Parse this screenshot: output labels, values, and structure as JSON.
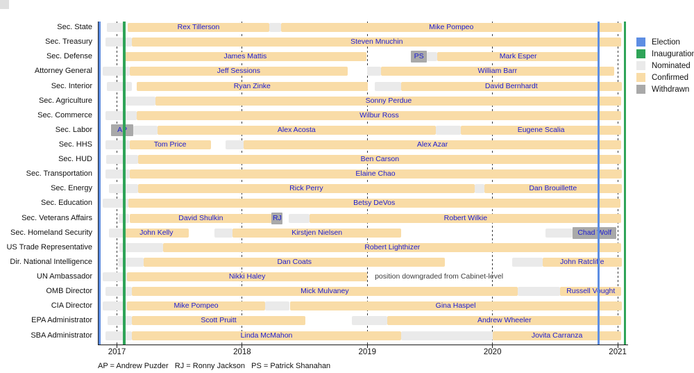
{
  "footnote": "AP = Andrew Puzder   RJ = Ronny Jackson   PS = Patrick Shanahan",
  "chart_data": {
    "type": "gantt-timeline",
    "x_axis": {
      "ticks": [
        2017,
        2018,
        2019,
        2020,
        2021
      ],
      "range": [
        2016.85,
        2021.1
      ],
      "grid": "dashed"
    },
    "legend_position": "right",
    "legend": [
      {
        "key": "election",
        "label": "Election"
      },
      {
        "key": "inauguration",
        "label": "Inauguration"
      },
      {
        "key": "nominated",
        "label": "Nominated"
      },
      {
        "key": "confirmed",
        "label": "Confirmed"
      },
      {
        "key": "withdrawn",
        "label": "Withdrawn"
      }
    ],
    "colors": {
      "election": "#5E8EE3",
      "inauguration": "#2FA458",
      "nominated": "#EAEAEA",
      "confirmed": "#F9DCA7",
      "withdrawn": "#A9A9A9",
      "name_text": "#1B1BD0"
    },
    "events": [
      {
        "type": "election",
        "year": 2016.862
      },
      {
        "type": "inauguration",
        "year": 2017.058
      },
      {
        "type": "election",
        "year": 2020.845
      },
      {
        "type": "inauguration",
        "year": 2021.057
      }
    ],
    "rows": [
      {
        "label": "Sec. State",
        "segments": [
          {
            "type": "nominated",
            "start": 2016.92,
            "end": 2017.06
          },
          {
            "type": "confirmed",
            "start": 2017.086,
            "end": 2018.217,
            "name": "Rex Tillerson"
          },
          {
            "type": "nominated",
            "start": 2018.217,
            "end": 2018.311
          },
          {
            "type": "confirmed",
            "start": 2018.311,
            "end": 2021.03,
            "name": "Mike Pompeo"
          }
        ]
      },
      {
        "label": "Sec. Treasury",
        "segments": [
          {
            "type": "nominated",
            "start": 2016.91,
            "end": 2017.12
          },
          {
            "type": "confirmed",
            "start": 2017.12,
            "end": 2021.03,
            "name": "Steven Mnuchin"
          }
        ]
      },
      {
        "label": "Sec. Defense",
        "segments": [
          {
            "type": "confirmed",
            "start": 2017.055,
            "end": 2018.995,
            "name": "James Mattis"
          },
          {
            "type": "withdrawn",
            "start": 2019.35,
            "end": 2019.475,
            "name": "PS"
          },
          {
            "type": "nominated",
            "start": 2019.475,
            "end": 2019.56
          },
          {
            "type": "confirmed",
            "start": 2019.56,
            "end": 2020.85,
            "name": "Mark Esper"
          }
        ]
      },
      {
        "label": "Attorney General",
        "segments": [
          {
            "type": "nominated",
            "start": 2016.885,
            "end": 2017.1
          },
          {
            "type": "confirmed",
            "start": 2017.1,
            "end": 2018.845,
            "name": "Jeff Sessions"
          },
          {
            "type": "nominated",
            "start": 2019.0,
            "end": 2019.11
          },
          {
            "type": "confirmed",
            "start": 2019.11,
            "end": 2020.97,
            "name": "William Barr"
          }
        ]
      },
      {
        "label": "Sec. Interior",
        "segments": [
          {
            "type": "nominated",
            "start": 2016.92,
            "end": 2017.12
          },
          {
            "type": "confirmed",
            "start": 2017.155,
            "end": 2019.005,
            "name": "Ryan Zinke"
          },
          {
            "type": "nominated",
            "start": 2019.06,
            "end": 2019.27
          },
          {
            "type": "confirmed",
            "start": 2019.27,
            "end": 2021.03,
            "name": "David Bernhardt"
          }
        ]
      },
      {
        "label": "Sec. Agriculture",
        "segments": [
          {
            "type": "nominated",
            "start": 2017.06,
            "end": 2017.31
          },
          {
            "type": "confirmed",
            "start": 2017.31,
            "end": 2021.03,
            "name": "Sonny Perdue"
          }
        ]
      },
      {
        "label": "Sec. Commerce",
        "segments": [
          {
            "type": "nominated",
            "start": 2016.91,
            "end": 2017.16
          },
          {
            "type": "confirmed",
            "start": 2017.16,
            "end": 2021.03,
            "name": "Wilbur Ross"
          }
        ]
      },
      {
        "label": "Sec. Labor",
        "segments": [
          {
            "type": "withdrawn",
            "start": 2016.955,
            "end": 2017.13,
            "name": "AP"
          },
          {
            "type": "nominated",
            "start": 2017.13,
            "end": 2017.325
          },
          {
            "type": "confirmed",
            "start": 2017.325,
            "end": 2019.545,
            "name": "Alex Acosta"
          },
          {
            "type": "nominated",
            "start": 2019.545,
            "end": 2019.745
          },
          {
            "type": "confirmed",
            "start": 2019.745,
            "end": 2021.03,
            "name": "Eugene Scalia"
          }
        ]
      },
      {
        "label": "Sec. HHS",
        "segments": [
          {
            "type": "nominated",
            "start": 2016.91,
            "end": 2017.1
          },
          {
            "type": "confirmed",
            "start": 2017.1,
            "end": 2017.75,
            "name": "Tom Price"
          },
          {
            "type": "nominated",
            "start": 2017.865,
            "end": 2018.01
          },
          {
            "type": "confirmed",
            "start": 2018.01,
            "end": 2021.03,
            "name": "Alex Azar"
          }
        ]
      },
      {
        "label": "Sec. HUD",
        "segments": [
          {
            "type": "nominated",
            "start": 2016.915,
            "end": 2017.17
          },
          {
            "type": "confirmed",
            "start": 2017.17,
            "end": 2021.03,
            "name": "Ben Carson"
          }
        ]
      },
      {
        "label": "Sec. Transportation",
        "segments": [
          {
            "type": "nominated",
            "start": 2016.91,
            "end": 2017.1
          },
          {
            "type": "confirmed",
            "start": 2017.1,
            "end": 2021.03,
            "name": "Elaine Chao"
          }
        ]
      },
      {
        "label": "Sec. Energy",
        "segments": [
          {
            "type": "nominated",
            "start": 2016.935,
            "end": 2017.17
          },
          {
            "type": "confirmed",
            "start": 2017.17,
            "end": 2019.855,
            "name": "Rick Perry"
          },
          {
            "type": "nominated",
            "start": 2019.855,
            "end": 2019.935
          },
          {
            "type": "confirmed",
            "start": 2019.935,
            "end": 2021.03,
            "name": "Dan Brouillette"
          }
        ]
      },
      {
        "label": "Sec. Education",
        "segments": [
          {
            "type": "nominated",
            "start": 2016.885,
            "end": 2017.09
          },
          {
            "type": "confirmed",
            "start": 2017.09,
            "end": 2021.02,
            "name": "Betsy DeVos"
          }
        ]
      },
      {
        "label": "Sec. Veterans Affairs",
        "segments": [
          {
            "type": "nominated",
            "start": 2017.015,
            "end": 2017.1
          },
          {
            "type": "confirmed",
            "start": 2017.1,
            "end": 2018.24,
            "name": "David Shulkin"
          },
          {
            "type": "withdrawn",
            "start": 2018.235,
            "end": 2018.325,
            "name": "RJ"
          },
          {
            "type": "nominated",
            "start": 2018.37,
            "end": 2018.54
          },
          {
            "type": "confirmed",
            "start": 2018.54,
            "end": 2021.03,
            "name": "Robert Wilkie"
          }
        ]
      },
      {
        "label": "Sec. Homeland Security",
        "segments": [
          {
            "type": "nominated",
            "start": 2016.935,
            "end": 2017.055
          },
          {
            "type": "confirmed",
            "start": 2017.055,
            "end": 2017.575,
            "name": "John Kelly"
          },
          {
            "type": "nominated",
            "start": 2017.78,
            "end": 2017.925
          },
          {
            "type": "confirmed",
            "start": 2017.925,
            "end": 2019.27,
            "name": "Kirstjen Nielsen"
          },
          {
            "type": "nominated",
            "start": 2020.42,
            "end": 2020.64
          },
          {
            "type": "withdrawn",
            "start": 2020.64,
            "end": 2020.99,
            "name": "Chad Wolf"
          }
        ]
      },
      {
        "label": "US Trade Representative",
        "segments": [
          {
            "type": "nominated",
            "start": 2017.02,
            "end": 2017.37
          },
          {
            "type": "confirmed",
            "start": 2017.37,
            "end": 2021.03,
            "name": "Robert Lighthizer"
          }
        ]
      },
      {
        "label": "Dir. National Intelligence",
        "segments": [
          {
            "type": "nominated",
            "start": 2017.01,
            "end": 2017.215
          },
          {
            "type": "confirmed",
            "start": 2017.215,
            "end": 2019.62,
            "name": "Dan Coats"
          },
          {
            "type": "nominated",
            "start": 2020.155,
            "end": 2020.4
          },
          {
            "type": "confirmed",
            "start": 2020.4,
            "end": 2021.03,
            "name": "John Ratcliffe"
          }
        ]
      },
      {
        "label": "UN Ambassador",
        "segments": [
          {
            "type": "nominated",
            "start": 2016.885,
            "end": 2017.08
          },
          {
            "type": "confirmed",
            "start": 2017.08,
            "end": 2019.0,
            "name": "Nikki Haley"
          }
        ],
        "note": {
          "text": "position downgraded from Cabinet-level",
          "at": 2019.06
        }
      },
      {
        "label": "OMB Director",
        "segments": [
          {
            "type": "nominated",
            "start": 2016.91,
            "end": 2017.12
          },
          {
            "type": "confirmed",
            "start": 2017.12,
            "end": 2020.2,
            "name": "Mick Mulvaney"
          },
          {
            "type": "nominated",
            "start": 2020.2,
            "end": 2020.54
          },
          {
            "type": "confirmed",
            "start": 2020.54,
            "end": 2021.03,
            "name": "Russell Vought"
          }
        ]
      },
      {
        "label": "CIA Director",
        "segments": [
          {
            "type": "nominated",
            "start": 2016.885,
            "end": 2017.08
          },
          {
            "type": "confirmed",
            "start": 2017.08,
            "end": 2018.185,
            "name": "Mike Pompeo"
          },
          {
            "type": "nominated",
            "start": 2018.185,
            "end": 2018.38
          },
          {
            "type": "confirmed",
            "start": 2018.38,
            "end": 2021.03,
            "name": "Gina Haspel"
          }
        ]
      },
      {
        "label": "EPA Administrator",
        "segments": [
          {
            "type": "nominated",
            "start": 2016.925,
            "end": 2017.12
          },
          {
            "type": "confirmed",
            "start": 2017.12,
            "end": 2018.505,
            "name": "Scott Pruitt"
          },
          {
            "type": "nominated",
            "start": 2018.875,
            "end": 2019.16
          },
          {
            "type": "confirmed",
            "start": 2019.16,
            "end": 2021.03,
            "name": "Andrew Wheeler"
          }
        ]
      },
      {
        "label": "SBA Administrator",
        "segments": [
          {
            "type": "nominated",
            "start": 2016.91,
            "end": 2017.12
          },
          {
            "type": "confirmed",
            "start": 2017.12,
            "end": 2019.27,
            "name": "Linda McMahon"
          },
          {
            "type": "nominated",
            "start": 2019.27,
            "end": 2020.0
          },
          {
            "type": "confirmed",
            "start": 2020.0,
            "end": 2021.03,
            "name": "Jovita Carranza"
          }
        ]
      }
    ]
  }
}
